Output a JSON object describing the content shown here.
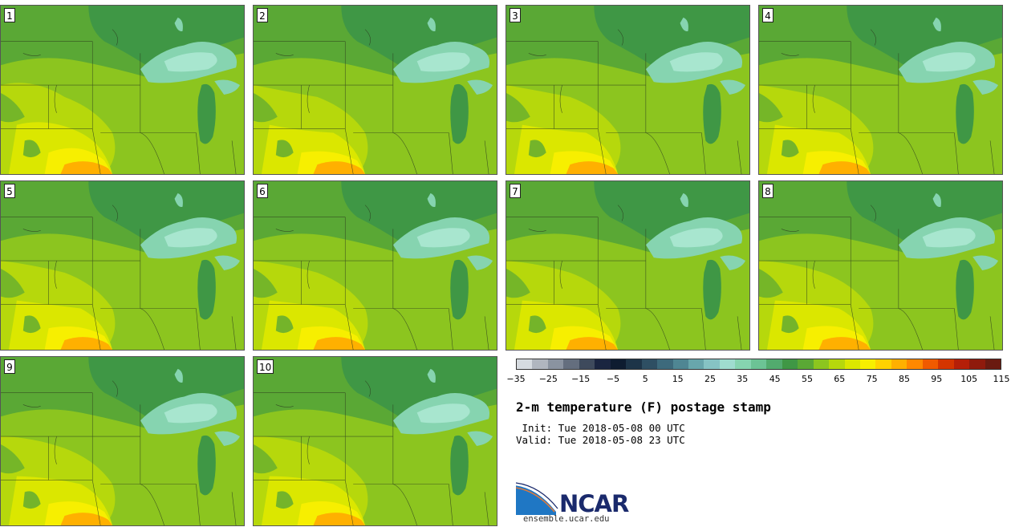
{
  "panels": [
    {
      "label": "1"
    },
    {
      "label": "2"
    },
    {
      "label": "3"
    },
    {
      "label": "4"
    },
    {
      "label": "5"
    },
    {
      "label": "6"
    },
    {
      "label": "7"
    },
    {
      "label": "8"
    },
    {
      "label": "9"
    },
    {
      "label": "10"
    }
  ],
  "colorbar": {
    "colors": [
      "#d6dbe0",
      "#b0b6bf",
      "#8a93a0",
      "#646e7e",
      "#3e4a5c",
      "#1a2540",
      "#0e1c30",
      "#1d3448",
      "#2e4f63",
      "#3d6a7c",
      "#4f8693",
      "#68a6ac",
      "#86c3c4",
      "#9fdccf",
      "#86d4b0",
      "#6cc395",
      "#52ab6e",
      "#3f9745",
      "#5aa835",
      "#8cc51f",
      "#b6d80c",
      "#dbe700",
      "#f7ef00",
      "#ffd200",
      "#ffb000",
      "#ff8800",
      "#f05a00",
      "#d43500",
      "#b51f08",
      "#8f1a0c",
      "#6a1a10"
    ],
    "ticks": [
      "−35",
      "−25",
      "−15",
      "−5",
      "5",
      "15",
      "25",
      "35",
      "45",
      "55",
      "65",
      "75",
      "85",
      "95",
      "105",
      "115"
    ]
  },
  "title": "2-m temperature (F) postage stamp",
  "init": " Init: Tue 2018-05-08 00 UTC",
  "valid": "Valid: Tue 2018-05-08 23 UTC",
  "logo": {
    "text": "NCAR",
    "url": "ensemble.ucar.edu"
  },
  "palette": {
    "dark_green": "#3f9745",
    "mid_green": "#5aa835",
    "light_green": "#8cc51f",
    "yellow_green": "#b6d80c",
    "yellow": "#dbe700",
    "bright_yellow": "#f7ef00",
    "orange": "#ffb000",
    "lake": "#86d4b0",
    "lake_light": "#a8e6cf"
  }
}
